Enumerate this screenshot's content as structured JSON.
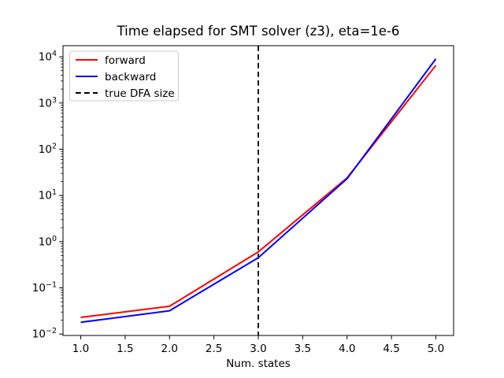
{
  "window": {
    "background": "#ffffff"
  },
  "chart_data": {
    "type": "line",
    "title": "Time elapsed for SMT solver (z3), eta=1e-6",
    "xlabel": "Num. states",
    "ylabel": "",
    "x": [
      1,
      2,
      3,
      4,
      5
    ],
    "series": [
      {
        "name": "forward",
        "color": "#ff0000",
        "linestyle": "solid",
        "values": [
          0.023,
          0.04,
          0.6,
          24,
          6500
        ]
      },
      {
        "name": "backward",
        "color": "#0000ff",
        "linestyle": "solid",
        "values": [
          0.018,
          0.032,
          0.45,
          23,
          9000
        ]
      }
    ],
    "vline": {
      "x": 3.0,
      "label": "true DFA size",
      "color": "#000000",
      "linestyle": "dashed"
    },
    "axes": {
      "x_tick_labels": [
        "1.0",
        "1.5",
        "2.0",
        "2.5",
        "3.0",
        "3.5",
        "4.0",
        "4.5",
        "5.0"
      ],
      "x_tick_values": [
        1.0,
        1.5,
        2.0,
        2.5,
        3.0,
        3.5,
        4.0,
        4.5,
        5.0
      ],
      "xlim": [
        0.8,
        5.2
      ],
      "y_scale": "log",
      "y_tick_exponents": [
        -2,
        -1,
        0,
        1,
        2,
        3,
        4
      ],
      "ylim_log10": [
        -2.03,
        4.24
      ],
      "grid": false
    },
    "legend": {
      "position": "upper left"
    },
    "colors": {
      "frame": "#000000",
      "legend_border": "#cccccc",
      "background": "#ffffff"
    }
  }
}
